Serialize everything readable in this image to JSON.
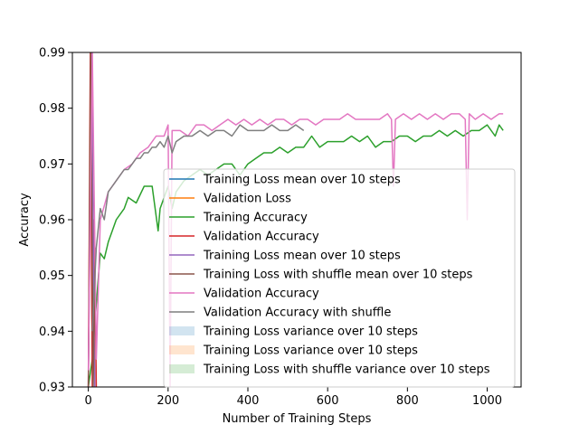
{
  "chart_data": {
    "type": "line",
    "title": "",
    "xlabel": "Number of Training Steps",
    "ylabel": "Accuracy",
    "xlim": [
      -40,
      1085
    ],
    "ylim": [
      0.93,
      0.99
    ],
    "xticks": [
      0,
      200,
      400,
      600,
      800,
      1000
    ],
    "yticks": [
      0.93,
      0.94,
      0.95,
      0.96,
      0.97,
      0.98,
      0.99
    ],
    "grid": false,
    "legend_position": "lower-right",
    "series": [
      {
        "name": "Training Loss mean over 10 steps",
        "kind": "line",
        "color": "#1f77b4",
        "x": [],
        "y": []
      },
      {
        "name": "Validation Loss",
        "kind": "line",
        "color": "#ff7f0e",
        "x": [],
        "y": []
      },
      {
        "name": "Training Accuracy",
        "kind": "line",
        "color": "#2ca02c",
        "x": [
          0,
          10,
          20,
          30,
          40,
          50,
          60,
          70,
          80,
          90,
          100,
          120,
          140,
          160,
          175,
          180,
          190,
          200,
          210,
          220,
          240,
          260,
          280,
          300,
          320,
          340,
          360,
          380,
          400,
          420,
          440,
          460,
          480,
          500,
          520,
          540,
          560,
          580,
          600,
          620,
          640,
          660,
          680,
          700,
          720,
          740,
          760,
          780,
          800,
          820,
          840,
          860,
          880,
          900,
          920,
          940,
          960,
          980,
          1000,
          1020,
          1030,
          1040
        ],
        "y": [
          0.93,
          0.935,
          0.945,
          0.954,
          0.953,
          0.956,
          0.958,
          0.96,
          0.961,
          0.962,
          0.964,
          0.963,
          0.966,
          0.966,
          0.958,
          0.962,
          0.964,
          0.966,
          0.962,
          0.965,
          0.967,
          0.968,
          0.969,
          0.968,
          0.969,
          0.97,
          0.97,
          0.968,
          0.97,
          0.971,
          0.972,
          0.972,
          0.973,
          0.972,
          0.973,
          0.973,
          0.975,
          0.973,
          0.974,
          0.974,
          0.974,
          0.975,
          0.974,
          0.975,
          0.973,
          0.974,
          0.974,
          0.975,
          0.975,
          0.974,
          0.975,
          0.975,
          0.976,
          0.975,
          0.976,
          0.975,
          0.976,
          0.976,
          0.977,
          0.975,
          0.977,
          0.976
        ]
      },
      {
        "name": "Validation Accuracy",
        "kind": "line",
        "color": "#d62728",
        "x": [
          0,
          5,
          10,
          15,
          20
        ],
        "y": [
          0.93,
          0.99,
          0.93,
          0.96,
          0.93
        ]
      },
      {
        "name": "Training Loss mean over 10 steps",
        "kind": "line",
        "color": "#9467bd",
        "x": [
          0,
          8,
          16
        ],
        "y": [
          0.93,
          0.99,
          0.93
        ]
      },
      {
        "name": "Training Loss with shuffle mean over 10 steps",
        "kind": "line",
        "color": "#8c564b",
        "x": [
          0,
          6,
          12,
          18
        ],
        "y": [
          0.93,
          0.99,
          0.93,
          0.955
        ]
      },
      {
        "name": "Validation Accuracy",
        "kind": "line",
        "color": "#e377c2",
        "x": [
          0,
          10,
          20,
          30,
          50,
          70,
          90,
          110,
          130,
          150,
          170,
          190,
          200,
          205,
          210,
          230,
          250,
          270,
          290,
          310,
          330,
          350,
          370,
          390,
          410,
          430,
          450,
          470,
          490,
          510,
          530,
          550,
          570,
          590,
          610,
          630,
          650,
          670,
          690,
          710,
          730,
          750,
          760,
          765,
          770,
          790,
          810,
          830,
          850,
          870,
          890,
          910,
          930,
          945,
          950,
          955,
          970,
          990,
          1010,
          1030,
          1040
        ],
        "y": [
          0.933,
          0.99,
          0.935,
          0.96,
          0.965,
          0.967,
          0.969,
          0.97,
          0.972,
          0.973,
          0.975,
          0.975,
          0.977,
          0.93,
          0.976,
          0.976,
          0.975,
          0.977,
          0.977,
          0.976,
          0.977,
          0.978,
          0.977,
          0.978,
          0.977,
          0.978,
          0.977,
          0.978,
          0.978,
          0.977,
          0.978,
          0.978,
          0.977,
          0.978,
          0.978,
          0.978,
          0.979,
          0.978,
          0.978,
          0.978,
          0.978,
          0.979,
          0.978,
          0.966,
          0.978,
          0.979,
          0.978,
          0.979,
          0.978,
          0.979,
          0.978,
          0.979,
          0.979,
          0.978,
          0.96,
          0.979,
          0.978,
          0.979,
          0.978,
          0.979,
          0.979
        ]
      },
      {
        "name": "Validation Accuracy with shuffle",
        "kind": "line",
        "color": "#7f7f7f",
        "x": [
          10,
          20,
          30,
          40,
          50,
          60,
          70,
          80,
          90,
          100,
          110,
          120,
          130,
          140,
          150,
          160,
          170,
          180,
          190,
          200,
          210,
          220,
          240,
          260,
          280,
          300,
          320,
          340,
          360,
          380,
          400,
          420,
          440,
          460,
          480,
          500,
          520,
          540
        ],
        "y": [
          0.94,
          0.955,
          0.962,
          0.96,
          0.965,
          0.966,
          0.967,
          0.968,
          0.969,
          0.969,
          0.97,
          0.971,
          0.971,
          0.972,
          0.972,
          0.973,
          0.973,
          0.974,
          0.973,
          0.975,
          0.972,
          0.974,
          0.975,
          0.975,
          0.976,
          0.975,
          0.976,
          0.976,
          0.975,
          0.977,
          0.976,
          0.976,
          0.976,
          0.977,
          0.976,
          0.976,
          0.977,
          0.976
        ]
      },
      {
        "name": "Training Loss variance over 10 steps",
        "kind": "band",
        "color": "#1f77b4",
        "x": [],
        "y_low": [],
        "y_high": []
      },
      {
        "name": "Training Loss variance over 10 steps",
        "kind": "band",
        "color": "#ff7f0e",
        "x": [],
        "y_low": [],
        "y_high": []
      },
      {
        "name": "Training Loss with shuffle variance over 10 steps",
        "kind": "band",
        "color": "#2ca02c",
        "x": [],
        "y_low": [],
        "y_high": []
      }
    ]
  }
}
